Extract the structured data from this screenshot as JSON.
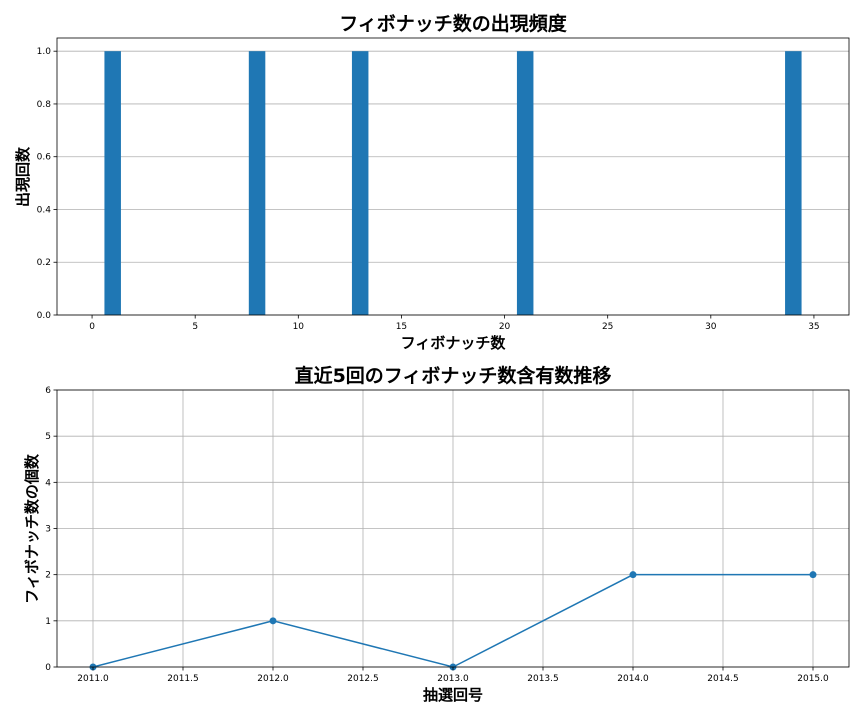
{
  "chart_data": [
    {
      "type": "bar",
      "title": "フィボナッチ数の出現頻度",
      "xlabel": "フィボナッチ数",
      "ylabel": "出現回数",
      "x": [
        1,
        8,
        13,
        21,
        34
      ],
      "values": [
        1,
        1,
        1,
        1,
        1
      ],
      "xlim": [
        -1.7,
        36.7
      ],
      "ylim": [
        0,
        1.05
      ],
      "xticks": [
        0,
        5,
        10,
        15,
        20,
        25,
        30,
        35
      ],
      "yticks": [
        0.0,
        0.2,
        0.4,
        0.6,
        0.8,
        1.0
      ],
      "xtick_labels": [
        "0",
        "5",
        "10",
        "15",
        "20",
        "25",
        "30",
        "35"
      ],
      "ytick_labels": [
        "0.0",
        "0.2",
        "0.4",
        "0.6",
        "0.8",
        "1.0"
      ],
      "grid": "y",
      "color": "#1f77b4"
    },
    {
      "type": "line",
      "title": "直近5回のフィボナッチ数含有数推移",
      "xlabel": "抽選回号",
      "ylabel": "フィボナッチ数の個数",
      "x": [
        2011.0,
        2012.0,
        2013.0,
        2014.0,
        2015.0
      ],
      "y": [
        0,
        1,
        0,
        2,
        2
      ],
      "xlim": [
        2010.8,
        2015.2
      ],
      "ylim": [
        0,
        6
      ],
      "xticks": [
        2011.0,
        2011.5,
        2012.0,
        2012.5,
        2013.0,
        2013.5,
        2014.0,
        2014.5,
        2015.0
      ],
      "yticks": [
        0,
        1,
        2,
        3,
        4,
        5,
        6
      ],
      "xtick_labels": [
        "2011.0",
        "2011.5",
        "2012.0",
        "2012.5",
        "2013.0",
        "2013.5",
        "2014.0",
        "2014.5",
        "2015.0"
      ],
      "ytick_labels": [
        "0",
        "1",
        "2",
        "3",
        "4",
        "5",
        "6"
      ],
      "grid": "both",
      "marker": "circle",
      "color": "#1f77b4"
    }
  ]
}
